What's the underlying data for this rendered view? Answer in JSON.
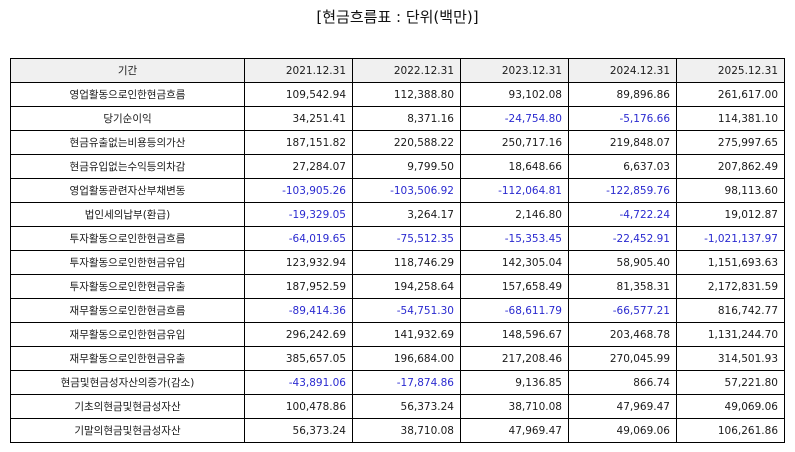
{
  "title": "[현금흐름표 : 단위(백만)]",
  "table": {
    "label_header": "기간",
    "columns": [
      "2021.12.31",
      "2022.12.31",
      "2023.12.31",
      "2024.12.31",
      "2025.12.31"
    ],
    "negative_color": "#2a2ad0",
    "rows": [
      {
        "label": "영업활동으로인한현금흐름",
        "values": [
          "109,542.94",
          "112,388.80",
          "93,102.08",
          "89,896.86",
          "261,617.00"
        ]
      },
      {
        "label": "당기순이익",
        "values": [
          "34,251.41",
          "8,371.16",
          "-24,754.80",
          "-5,176.66",
          "114,381.10"
        ]
      },
      {
        "label": "현금유출없는비용등의가산",
        "values": [
          "187,151.82",
          "220,588.22",
          "250,717.16",
          "219,848.07",
          "275,997.65"
        ]
      },
      {
        "label": "현금유입없는수익등의차감",
        "values": [
          "27,284.07",
          "9,799.50",
          "18,648.66",
          "6,637.03",
          "207,862.49"
        ]
      },
      {
        "label": "영업활동관련자산부채변동",
        "values": [
          "-103,905.26",
          "-103,506.92",
          "-112,064.81",
          "-122,859.76",
          "98,113.60"
        ]
      },
      {
        "label": "법인세의납부(환급)",
        "values": [
          "-19,329.05",
          "3,264.17",
          "2,146.80",
          "-4,722.24",
          "19,012.87"
        ]
      },
      {
        "label": "투자활동으로인한현금흐름",
        "values": [
          "-64,019.65",
          "-75,512.35",
          "-15,353.45",
          "-22,452.91",
          "-1,021,137.97"
        ]
      },
      {
        "label": "투자활동으로인한현금유입",
        "values": [
          "123,932.94",
          "118,746.29",
          "142,305.04",
          "58,905.40",
          "1,151,693.63"
        ]
      },
      {
        "label": "투자활동으로인한현금유출",
        "values": [
          "187,952.59",
          "194,258.64",
          "157,658.49",
          "81,358.31",
          "2,172,831.59"
        ]
      },
      {
        "label": "재무활동으로인한현금흐름",
        "values": [
          "-89,414.36",
          "-54,751.30",
          "-68,611.79",
          "-66,577.21",
          "816,742.77"
        ]
      },
      {
        "label": "재무활동으로인한현금유입",
        "values": [
          "296,242.69",
          "141,932.69",
          "148,596.67",
          "203,468.78",
          "1,131,244.70"
        ]
      },
      {
        "label": "재무활동으로인한현금유출",
        "values": [
          "385,657.05",
          "196,684.00",
          "217,208.46",
          "270,045.99",
          "314,501.93"
        ]
      },
      {
        "label": "현금및현금성자산의증가(감소)",
        "values": [
          "-43,891.06",
          "-17,874.86",
          "9,136.85",
          "866.74",
          "57,221.80"
        ]
      },
      {
        "label": "기초의현금및현금성자산",
        "values": [
          "100,478.86",
          "56,373.24",
          "38,710.08",
          "47,969.47",
          "49,069.06"
        ]
      },
      {
        "label": "기말의현금및현금성자산",
        "values": [
          "56,373.24",
          "38,710.08",
          "47,969.47",
          "49,069.06",
          "106,261.86"
        ]
      }
    ]
  }
}
